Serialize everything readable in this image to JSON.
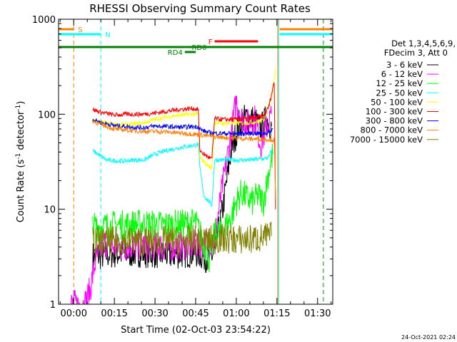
{
  "chart_data": {
    "type": "line",
    "title": "RHESSI Observing Summary Count Rates",
    "xlabel": "Start Time (02-Oct-03 23:54:22)",
    "ylabel_main": "Count Rate (s",
    "ylabel_sup1": "-1",
    "ylabel_mid": " detector",
    "ylabel_sup2": "-1",
    "ylabel_end": ")",
    "y_scale": "log",
    "ylim": [
      1,
      1000
    ],
    "xlim_minutes": [
      -5.6,
      95.6
    ],
    "grid": false,
    "x_ticks": [
      {
        "minutes": 0,
        "label": "00:00"
      },
      {
        "minutes": 15,
        "label": "00:15"
      },
      {
        "minutes": 30,
        "label": "00:30"
      },
      {
        "minutes": 45,
        "label": "00:45"
      },
      {
        "minutes": 60,
        "label": "01:00"
      },
      {
        "minutes": 75,
        "label": "01:15"
      },
      {
        "minutes": 90,
        "label": "01:30"
      }
    ],
    "y_ticks": [
      {
        "value": 1,
        "label": "1"
      },
      {
        "value": 10,
        "label": "10"
      },
      {
        "value": 100,
        "label": "100"
      },
      {
        "value": 1000,
        "label": "1000"
      }
    ],
    "legend_header": [
      "Det 1,3,4,5,6,9,",
      "FDecim 3, Att 0"
    ],
    "legend_placement": "right",
    "series": [
      {
        "name": "3 - 6 keV",
        "color": "#000000",
        "points": [
          [
            7,
            3.2
          ],
          [
            15,
            3.4
          ],
          [
            25,
            3.5
          ],
          [
            35,
            3.3
          ],
          [
            45,
            3.5
          ],
          [
            50,
            3.0
          ],
          [
            52,
            3.5
          ],
          [
            55,
            10
          ],
          [
            58,
            40
          ],
          [
            61,
            80
          ],
          [
            64,
            95
          ],
          [
            67,
            85
          ],
          [
            69,
            70
          ],
          [
            71,
            90
          ],
          [
            73,
            75
          ]
        ]
      },
      {
        "name": "6 - 12 keV",
        "color": "#ff00ff",
        "points": [
          [
            -1,
            1.0
          ],
          [
            4,
            1.0
          ],
          [
            6,
            1.4
          ],
          [
            8,
            2.8
          ],
          [
            11,
            4.5
          ],
          [
            15,
            4.0
          ],
          [
            25,
            4.2
          ],
          [
            35,
            4.0
          ],
          [
            45,
            4.3
          ],
          [
            50,
            4.5
          ],
          [
            52,
            5
          ],
          [
            55,
            18
          ],
          [
            58,
            60
          ],
          [
            60,
            140
          ],
          [
            62,
            90
          ],
          [
            64,
            80
          ],
          [
            67,
            90
          ],
          [
            69,
            48
          ],
          [
            71,
            70
          ],
          [
            73,
            100
          ]
        ]
      },
      {
        "name": "12 - 25 keV",
        "color": "#00ff00",
        "points": [
          [
            7,
            6.5
          ],
          [
            15,
            6.8
          ],
          [
            25,
            7.0
          ],
          [
            35,
            6.8
          ],
          [
            45,
            7.2
          ],
          [
            48,
            4.5
          ],
          [
            50,
            3.0
          ],
          [
            52,
            5.5
          ],
          [
            55,
            6.0
          ],
          [
            58,
            8.0
          ],
          [
            60,
            12
          ],
          [
            62,
            15
          ],
          [
            64,
            13
          ],
          [
            66,
            12
          ],
          [
            68,
            14
          ],
          [
            70,
            12
          ],
          [
            72,
            25
          ],
          [
            73.5,
            38
          ]
        ]
      },
      {
        "name": "25 - 50 keV",
        "color": "#00ffff",
        "points": [
          [
            7,
            41
          ],
          [
            9,
            38
          ],
          [
            12,
            33
          ],
          [
            18,
            32
          ],
          [
            22,
            33
          ],
          [
            26,
            33
          ],
          [
            30,
            38
          ],
          [
            35,
            42
          ],
          [
            40,
            45
          ],
          [
            44,
            47
          ],
          [
            46,
            48
          ],
          [
            46.5,
            28
          ],
          [
            48,
            14
          ],
          [
            50,
            12
          ],
          [
            51,
            11
          ],
          [
            52,
            33
          ],
          [
            55,
            33
          ],
          [
            60,
            33
          ],
          [
            65,
            33
          ],
          [
            70,
            34
          ],
          [
            72,
            35
          ],
          [
            73.5,
            45
          ]
        ]
      },
      {
        "name": "50 - 100 keV",
        "color": "#ffff00",
        "points": [
          [
            7,
            87
          ],
          [
            10,
            82
          ],
          [
            15,
            78
          ],
          [
            20,
            78
          ],
          [
            25,
            80
          ],
          [
            30,
            88
          ],
          [
            35,
            95
          ],
          [
            40,
            98
          ],
          [
            44,
            100
          ],
          [
            46,
            100
          ],
          [
            46.5,
            35
          ],
          [
            48,
            32
          ],
          [
            50,
            28
          ],
          [
            51,
            27
          ],
          [
            52,
            82
          ],
          [
            55,
            80
          ],
          [
            60,
            80
          ],
          [
            65,
            82
          ],
          [
            70,
            85
          ],
          [
            73,
            150
          ],
          [
            74.5,
            300
          ]
        ]
      },
      {
        "name": "100 - 300 keV",
        "color": "#ff0000",
        "points": [
          [
            7,
            112
          ],
          [
            10,
            105
          ],
          [
            15,
            98
          ],
          [
            20,
            100
          ],
          [
            25,
            100
          ],
          [
            30,
            103
          ],
          [
            35,
            108
          ],
          [
            40,
            113
          ],
          [
            44,
            115
          ],
          [
            46,
            112
          ],
          [
            46.5,
            42
          ],
          [
            48,
            38
          ],
          [
            50,
            35
          ],
          [
            51,
            34
          ],
          [
            52,
            90
          ],
          [
            55,
            88
          ],
          [
            60,
            88
          ],
          [
            65,
            90
          ],
          [
            70,
            95
          ],
          [
            72,
            120
          ],
          [
            74,
            220
          ],
          [
            74.5,
            10
          ]
        ]
      },
      {
        "name": "300 - 800 keV",
        "color": "#0000ff",
        "points": [
          [
            7,
            88
          ],
          [
            10,
            82
          ],
          [
            15,
            76
          ],
          [
            20,
            74
          ],
          [
            25,
            72
          ],
          [
            30,
            75
          ],
          [
            35,
            74
          ],
          [
            40,
            73
          ],
          [
            44,
            74
          ],
          [
            46,
            74
          ],
          [
            47,
            68
          ],
          [
            50,
            64
          ],
          [
            52,
            63
          ],
          [
            55,
            63
          ],
          [
            60,
            62
          ],
          [
            65,
            63
          ],
          [
            70,
            63
          ],
          [
            72,
            64
          ],
          [
            73.5,
            70
          ]
        ]
      },
      {
        "name": "800 - 7000 keV",
        "color": "#ff8000",
        "points": [
          [
            7,
            85
          ],
          [
            10,
            78
          ],
          [
            15,
            70
          ],
          [
            20,
            68
          ],
          [
            25,
            66
          ],
          [
            30,
            66
          ],
          [
            35,
            65
          ],
          [
            40,
            63
          ],
          [
            44,
            62
          ],
          [
            46,
            61
          ],
          [
            50,
            59
          ],
          [
            55,
            57
          ],
          [
            60,
            56
          ],
          [
            65,
            55
          ],
          [
            70,
            55
          ],
          [
            73,
            54
          ],
          [
            74,
            53
          ],
          [
            74.5,
            13
          ]
        ]
      },
      {
        "name": "7000 - 15000 keV",
        "color": "#808000",
        "points": [
          [
            7,
            4.8
          ],
          [
            10,
            4.5
          ],
          [
            15,
            4.6
          ],
          [
            20,
            4.7
          ],
          [
            25,
            4.6
          ],
          [
            30,
            4.6
          ],
          [
            35,
            4.7
          ],
          [
            40,
            4.6
          ],
          [
            45,
            4.8
          ],
          [
            50,
            4.7
          ],
          [
            55,
            4.9
          ],
          [
            60,
            4.8
          ],
          [
            65,
            4.8
          ],
          [
            70,
            5.0
          ],
          [
            73,
            5.2
          ]
        ]
      }
    ],
    "flag_bars": [
      {
        "label": "S",
        "color": "#ff8000",
        "x_start": -5.6,
        "x_end": 0,
        "level": 1
      },
      {
        "label": "N",
        "color": "#00ffff",
        "x_start": -5.6,
        "x_end": 10,
        "level": 2
      },
      {
        "label": "",
        "color": "#008000",
        "x_start": -5.6,
        "x_end": 95.6,
        "level": 3
      },
      {
        "label": "RD0",
        "color": "#008000",
        "x_start": 44,
        "x_end": 50,
        "level": 3,
        "label_pos": "end"
      },
      {
        "label": "RD4",
        "color": "#008000",
        "x_start": 41,
        "x_end": 45,
        "level": 4,
        "label_pos": "start"
      },
      {
        "label": "F",
        "color": "#ff0000",
        "x_start": 52,
        "x_end": 68,
        "level": 5,
        "label_pos": "start"
      },
      {
        "label": "",
        "color": "#ff8000",
        "x_start": 76,
        "x_end": 95.6,
        "level": 1
      },
      {
        "label": "",
        "color": "#00ffff",
        "x_start": 76,
        "x_end": 95.6,
        "level": 2
      }
    ],
    "vertical_markers": [
      {
        "minutes": 0,
        "color": "#ff8000",
        "style": "dashed"
      },
      {
        "minutes": 10,
        "color": "#00ffff",
        "style": "dashed"
      },
      {
        "minutes": 75.3,
        "color": "#ff8000",
        "style": "solid"
      },
      {
        "minutes": 75.6,
        "color": "#00ffff",
        "style": "solid"
      },
      {
        "minutes": 92,
        "color": "#ff8000",
        "style": "dashed"
      },
      {
        "minutes": 92.3,
        "color": "#00ffff",
        "style": "dashed"
      }
    ]
  },
  "footer": {
    "timestamp": "24-Oct-2021 02:24"
  }
}
